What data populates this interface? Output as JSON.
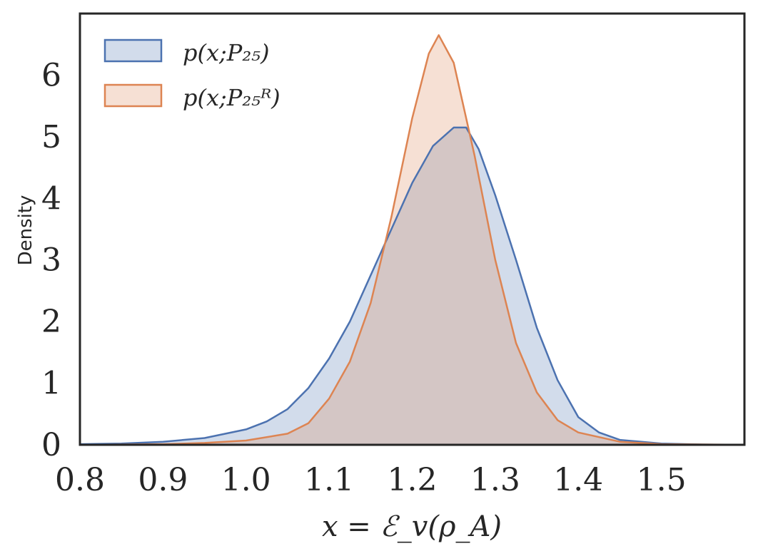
{
  "chart_data": {
    "type": "area",
    "xlabel": "x = ℰ_v(ρ_A)",
    "ylabel": "Density",
    "xlim": [
      0.8,
      1.6
    ],
    "ylim": [
      0,
      7
    ],
    "x_ticks": [
      0.8,
      0.9,
      1.0,
      1.1,
      1.2,
      1.3,
      1.4,
      1.5
    ],
    "x_tick_labels": [
      "0.8",
      "0.9",
      "1.0",
      "1.1",
      "1.2",
      "1.3",
      "1.4",
      "1.5"
    ],
    "y_ticks": [
      0,
      1,
      2,
      3,
      4,
      5,
      6
    ],
    "y_tick_labels": [
      "0",
      "1",
      "2",
      "3",
      "4",
      "5",
      "6"
    ],
    "grid": false,
    "legend_position": "top-left",
    "series": [
      {
        "name": "p(x; P25)",
        "legend_label": "p(x;P₂₅)",
        "color": "#4C72B0",
        "fill": "rgba(76,114,176,0.25)",
        "x": [
          0.8,
          0.85,
          0.9,
          0.95,
          1.0,
          1.025,
          1.05,
          1.075,
          1.1,
          1.125,
          1.15,
          1.175,
          1.2,
          1.225,
          1.25,
          1.265,
          1.28,
          1.3,
          1.325,
          1.35,
          1.375,
          1.4,
          1.425,
          1.45,
          1.5,
          1.55,
          1.6
        ],
        "y": [
          0.01,
          0.02,
          0.05,
          0.11,
          0.25,
          0.38,
          0.58,
          0.92,
          1.4,
          2.0,
          2.75,
          3.5,
          4.25,
          4.85,
          5.15,
          5.15,
          4.8,
          4.05,
          3.0,
          1.9,
          1.05,
          0.45,
          0.2,
          0.08,
          0.02,
          0.005,
          0.0
        ]
      },
      {
        "name": "p(x; P25^R)",
        "legend_label": "p(x;P₂₅ᴿ)",
        "color": "#DD8452",
        "fill": "rgba(221,132,82,0.25)",
        "x": [
          0.8,
          0.9,
          0.95,
          1.0,
          1.05,
          1.075,
          1.1,
          1.125,
          1.15,
          1.175,
          1.2,
          1.22,
          1.232,
          1.25,
          1.275,
          1.3,
          1.325,
          1.35,
          1.375,
          1.4,
          1.45,
          1.5,
          1.6
        ],
        "y": [
          0.0,
          0.01,
          0.03,
          0.07,
          0.18,
          0.35,
          0.75,
          1.35,
          2.3,
          3.7,
          5.3,
          6.35,
          6.65,
          6.2,
          4.7,
          3.0,
          1.65,
          0.85,
          0.4,
          0.2,
          0.05,
          0.01,
          0.0
        ]
      }
    ]
  }
}
